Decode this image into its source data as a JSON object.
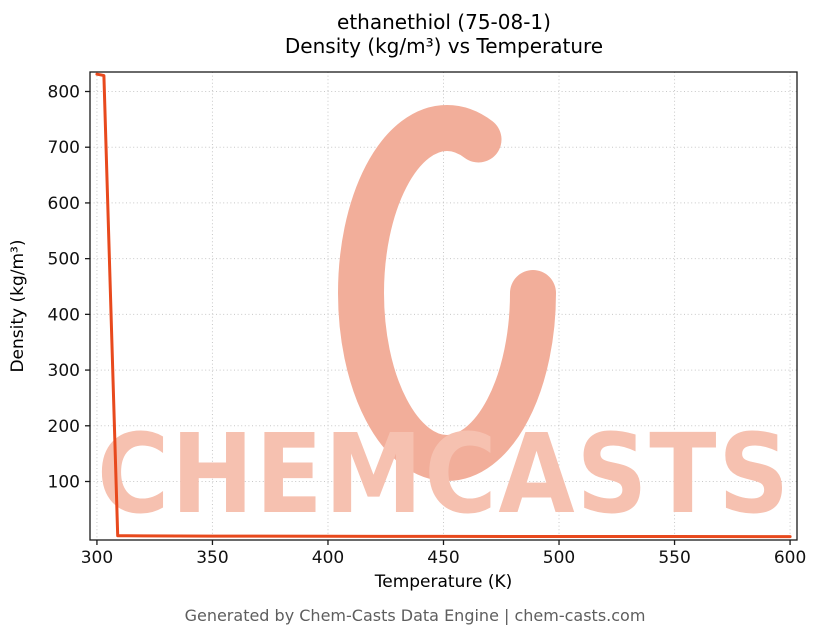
{
  "title": {
    "line1": "ethanethiol (75-08-1)",
    "line2": "Density (kg/m³) vs Temperature"
  },
  "footer": "Generated by Chem-Casts Data Engine | chem-casts.com",
  "watermark": {
    "text": "CHEMCASTS",
    "text_color": "#f6c1b0",
    "ring_color": "#f2ae9a"
  },
  "chart_data": {
    "type": "line",
    "title": "ethanethiol (75-08-1) — Density (kg/m³) vs Temperature",
    "xlabel": "Temperature (K)",
    "ylabel": "Density (kg/m³)",
    "xlim": [
      297,
      603
    ],
    "ylim": [
      -5,
      835
    ],
    "xticks": [
      300,
      350,
      400,
      450,
      500,
      550,
      600
    ],
    "yticks": [
      100,
      200,
      300,
      400,
      500,
      600,
      700,
      800
    ],
    "grid": true,
    "grid_color": "#c8c8c8",
    "spine_color": "#1a1a1a",
    "line_color": "#e8491d",
    "line_width": 3,
    "series": [
      {
        "name": "Density",
        "points": [
          [
            300,
            831
          ],
          [
            301.5,
            830
          ],
          [
            303,
            828.5
          ],
          [
            309,
            2.7
          ],
          [
            320,
            2.3
          ],
          [
            350,
            2.0
          ],
          [
            400,
            1.7
          ],
          [
            450,
            1.5
          ],
          [
            500,
            1.3
          ],
          [
            550,
            1.2
          ],
          [
            600,
            1.1
          ]
        ]
      }
    ]
  }
}
